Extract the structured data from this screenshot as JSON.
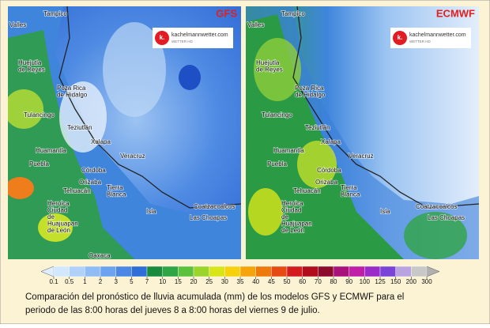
{
  "panels": [
    {
      "model": "GFS",
      "logo": "kachelmannwetter.com",
      "logo_sub": "WETTER HD",
      "logo_icon": "k."
    },
    {
      "model": "ECMWF",
      "logo": "kachelmannwetter.com",
      "logo_sub": "WETTER HD",
      "logo_icon": "k."
    }
  ],
  "cities": [
    {
      "lines": [
        "Tampico"
      ]
    },
    {
      "lines": [
        "Valles"
      ]
    },
    {
      "lines": [
        "Huejutla",
        "de Reyes"
      ]
    },
    {
      "lines": [
        "Poza Rica",
        "de Hidalgo"
      ]
    },
    {
      "lines": [
        "Tulancingo"
      ]
    },
    {
      "lines": [
        "Teziutlán"
      ]
    },
    {
      "lines": [
        "Xalapa"
      ]
    },
    {
      "lines": [
        "Veracruz"
      ]
    },
    {
      "lines": [
        "Huamantla"
      ]
    },
    {
      "lines": [
        "Puebla"
      ]
    },
    {
      "lines": [
        "Córdoba"
      ]
    },
    {
      "lines": [
        "Orizaba"
      ]
    },
    {
      "lines": [
        "Tehuacán"
      ]
    },
    {
      "lines": [
        "Tierra",
        "Blanca"
      ]
    },
    {
      "lines": [
        "Heroica",
        "Ciudad",
        "de",
        "Huajuapan",
        "de León"
      ]
    },
    {
      "lines": [
        "Isla"
      ]
    },
    {
      "lines": [
        "Coatzacoalcos"
      ]
    },
    {
      "lines": [
        "Las Choapas"
      ]
    },
    {
      "lines": [
        "Oaxaca"
      ]
    }
  ],
  "colorbar": {
    "ticks": [
      0.1,
      0.5,
      1,
      2,
      3,
      5,
      7,
      10,
      15,
      20,
      25,
      30,
      35,
      40,
      45,
      50,
      60,
      70,
      80,
      90,
      100,
      125,
      150,
      200,
      300
    ],
    "colors": [
      "#d2e8ff",
      "#b0d2fa",
      "#8fbcf5",
      "#6ca2ee",
      "#4c88e3",
      "#2e6ed6",
      "#1a8a3c",
      "#2fa545",
      "#5cc13c",
      "#9bd52c",
      "#d8e619",
      "#f6d10c",
      "#f5a40a",
      "#ef7a0c",
      "#e54b12",
      "#d41e1e",
      "#b20d1a",
      "#8c0a2a",
      "#a8127a",
      "#c01ea8",
      "#9a2cc8",
      "#7a44d6",
      "#b9a3e0",
      "#c8c8c8"
    ],
    "under_color": "#e0efff",
    "over_color": "#b0b0b0"
  },
  "caption": [
    "Comparación del pronóstico de lluvia acumulada (mm) de los modelos GFS y ECMWF para el",
    "periodo de las 8:00 horas del jueves 8 a 8:00 horas del viernes 9 de julio."
  ]
}
